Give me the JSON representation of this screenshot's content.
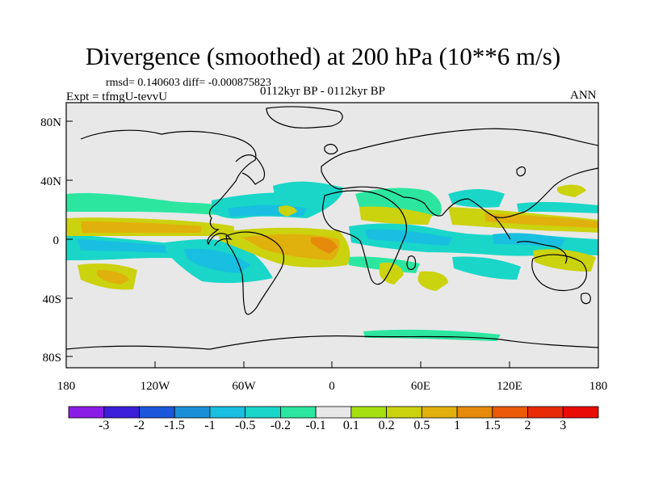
{
  "title": "Divergence (smoothed) at 200 hPa (10**6 m/s)",
  "stats": "rmsd= 0.140603  diff= -0.000875823",
  "experiment": "Expt = tfmgU-tevvU",
  "period": "0112kyr BP - 0112kyr BP",
  "season": "ANN",
  "map": {
    "lat_ticks": [
      "80N",
      "40N",
      "0",
      "40S",
      "80S"
    ],
    "lon_ticks": [
      "180",
      "120W",
      "60W",
      "0",
      "60E",
      "120E",
      "180"
    ]
  },
  "colorbar": {
    "labels": [
      "-3",
      "-2",
      "-1.5",
      "-1",
      "-0.5",
      "-0.2",
      "-0.1",
      "0.1",
      "0.2",
      "0.5",
      "1",
      "1.5",
      "2",
      "3"
    ],
    "colors": [
      "#8b1be6",
      "#3c1fd8",
      "#1a57dc",
      "#1b90d8",
      "#19bfe0",
      "#19d6c8",
      "#2ce6a0",
      "#e8e8e8",
      "#a6df10",
      "#cbd20e",
      "#e0b00c",
      "#e58a0a",
      "#ea5a08",
      "#e82a06",
      "#e80c04"
    ]
  }
}
